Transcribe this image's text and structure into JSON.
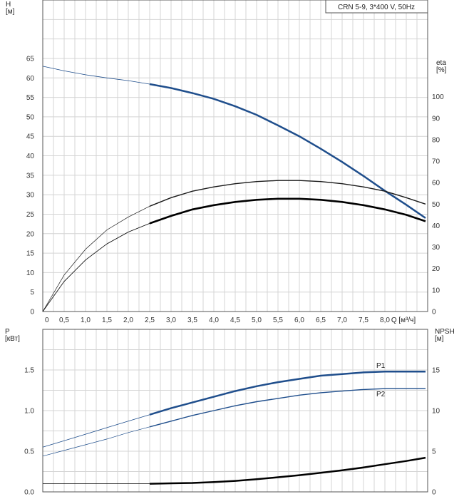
{
  "chart_data": [
    {
      "type": "line",
      "title": "CRN 5-9, 3*400 V, 50Hz",
      "xlabel": "Q [м³/ч]",
      "ylabel_left": "H\n[м]",
      "ylabel_right": "eta\n[%]",
      "xlim": [
        0,
        9
      ],
      "ylim_left": [
        0,
        80
      ],
      "ylim_right": [
        0,
        145
      ],
      "x_ticks": [
        "0",
        "0,5",
        "1,0",
        "1,5",
        "2,0",
        "2,5",
        "3,0",
        "3,5",
        "4,0",
        "4,5",
        "5,0",
        "5,5",
        "6,0",
        "6,5",
        "7,0",
        "7,5",
        "8,0"
      ],
      "y_ticks_left": [
        "0",
        "5",
        "10",
        "15",
        "20",
        "25",
        "30",
        "35",
        "40",
        "45",
        "50",
        "55",
        "60",
        "65"
      ],
      "y_ticks_right": [
        "0",
        "10",
        "20",
        "30",
        "40",
        "50",
        "60",
        "70",
        "80",
        "90",
        "100"
      ],
      "grid": true,
      "series": [
        {
          "axis": "left",
          "color": "#1f4e8c",
          "x": [
            0,
            0.5,
            1.0,
            1.5,
            2.0,
            2.5,
            3.0,
            3.5,
            4.0,
            4.5,
            5.0,
            5.5,
            6.0,
            6.5,
            7.0,
            7.5,
            8.0,
            8.5,
            8.95
          ],
          "y": [
            63.0,
            61.8,
            60.8,
            60.0,
            59.3,
            58.4,
            57.4,
            56.1,
            54.6,
            52.7,
            50.5,
            47.8,
            45.0,
            41.8,
            38.4,
            34.8,
            31.0,
            27.4,
            24.0
          ]
        },
        {
          "axis": "right",
          "color": "#1a1a1a",
          "x": [
            0,
            0.5,
            1.0,
            1.5,
            2.0,
            2.5,
            3.0,
            3.5,
            4.0,
            4.5,
            5.0,
            5.5,
            6.0,
            6.5,
            7.0,
            7.5,
            8.0,
            8.5,
            8.95
          ],
          "y": [
            0,
            17,
            29,
            38,
            44,
            49,
            53,
            56,
            58,
            59.5,
            60.5,
            61,
            61,
            60.5,
            59.5,
            58,
            56,
            53,
            50
          ]
        },
        {
          "axis": "right",
          "color": "#000000",
          "x": [
            0,
            0.5,
            1.0,
            1.5,
            2.0,
            2.5,
            3.0,
            3.5,
            4.0,
            4.5,
            5.0,
            5.5,
            6.0,
            6.5,
            7.0,
            7.5,
            8.0,
            8.5,
            8.95
          ],
          "y": [
            0,
            14,
            24,
            31.5,
            37,
            41,
            44.5,
            47.5,
            49.5,
            51,
            52,
            52.5,
            52.5,
            52,
            51,
            49.5,
            47.5,
            45,
            42
          ]
        }
      ]
    },
    {
      "type": "line",
      "xlabel": "",
      "ylabel_left": "P\n[кВт]",
      "ylabel_right": "NPSH\n[м]",
      "xlim": [
        0,
        9
      ],
      "ylim_left": [
        0,
        2.0
      ],
      "ylim_right": [
        0,
        20
      ],
      "y_ticks_left": [
        "0.0",
        "0.5",
        "1.0",
        "1.5"
      ],
      "y_ticks_right": [
        "0",
        "5",
        "10",
        "15"
      ],
      "grid": true,
      "series": [
        {
          "name": "P1",
          "axis": "left",
          "color": "#1f4e8c",
          "x": [
            0,
            0.5,
            1.0,
            1.5,
            2.0,
            2.5,
            3.0,
            3.5,
            4.0,
            4.5,
            5.0,
            5.5,
            6.0,
            6.5,
            7.0,
            7.5,
            8.0,
            8.5,
            8.95
          ],
          "y": [
            0.55,
            0.63,
            0.71,
            0.79,
            0.87,
            0.95,
            1.03,
            1.1,
            1.17,
            1.24,
            1.3,
            1.35,
            1.39,
            1.43,
            1.45,
            1.47,
            1.48,
            1.48,
            1.48
          ]
        },
        {
          "name": "P2",
          "axis": "left",
          "color": "#1f4e8c",
          "x": [
            0,
            0.5,
            1.0,
            1.5,
            2.0,
            2.5,
            3.0,
            3.5,
            4.0,
            4.5,
            5.0,
            5.5,
            6.0,
            6.5,
            7.0,
            7.5,
            8.0,
            8.5,
            8.95
          ],
          "y": [
            0.44,
            0.51,
            0.58,
            0.65,
            0.73,
            0.8,
            0.87,
            0.94,
            1.0,
            1.06,
            1.11,
            1.15,
            1.19,
            1.22,
            1.24,
            1.26,
            1.27,
            1.27,
            1.27
          ]
        },
        {
          "axis": "right",
          "color": "#000000",
          "x": [
            0,
            0.5,
            1.0,
            1.5,
            2.0,
            2.5,
            3.0,
            3.5,
            4.0,
            4.5,
            5.0,
            5.5,
            6.0,
            6.5,
            7.0,
            7.5,
            8.0,
            8.5,
            8.95
          ],
          "y": [
            1.0,
            1.0,
            1.0,
            1.0,
            1.0,
            1.0,
            1.05,
            1.1,
            1.2,
            1.35,
            1.55,
            1.8,
            2.05,
            2.35,
            2.65,
            3.0,
            3.4,
            3.8,
            4.2
          ]
        }
      ]
    }
  ]
}
